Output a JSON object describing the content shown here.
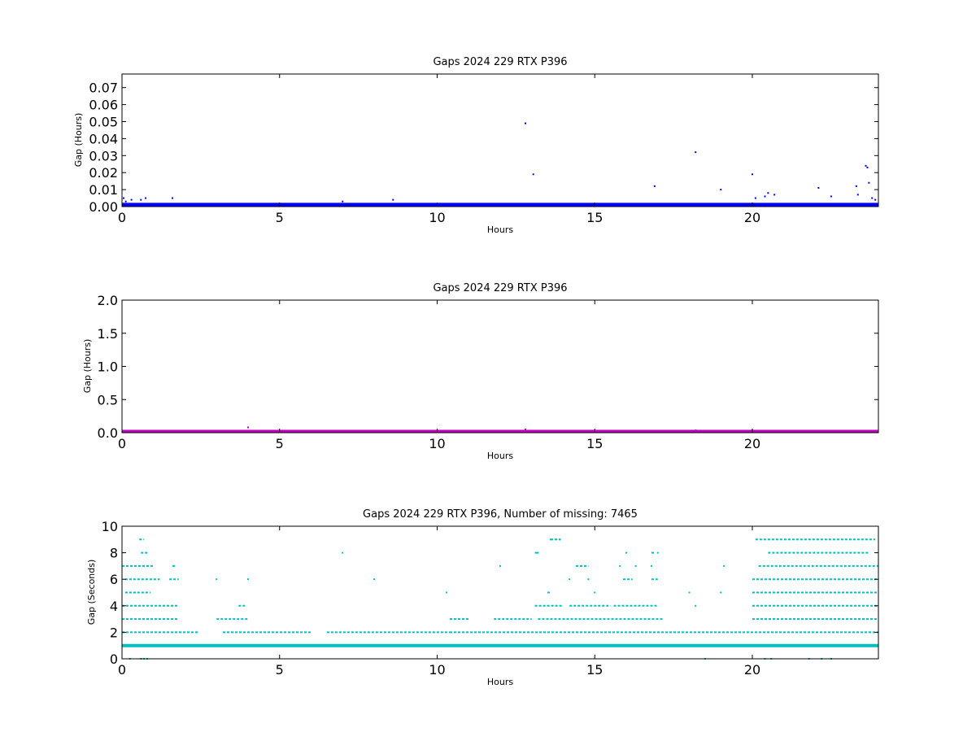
{
  "chart_data": [
    {
      "type": "scatter",
      "title": "Gaps 2024 229 RTX  P396",
      "xlabel": "Hours",
      "ylabel": "Gap (Hours)",
      "xlim": [
        0,
        24
      ],
      "ylim": [
        0,
        0.078
      ],
      "xticks": [
        "0",
        "5",
        "10",
        "15",
        "20"
      ],
      "yticks": [
        "0.00",
        "0.01",
        "0.02",
        "0.03",
        "0.04",
        "0.05",
        "0.06",
        "0.07"
      ],
      "grid": false,
      "color": "#0000ff",
      "series": [
        {
          "band": {
            "x_start": 0,
            "x_end": 24,
            "y_min": 0.0,
            "y_max": 0.0015
          },
          "points": [
            [
              0.05,
              0.005
            ],
            [
              0.12,
              0.003
            ],
            [
              0.3,
              0.004
            ],
            [
              0.6,
              0.004
            ],
            [
              0.75,
              0.005
            ],
            [
              1.6,
              0.005
            ],
            [
              7.0,
              0.003
            ],
            [
              8.6,
              0.004
            ],
            [
              12.8,
              0.049
            ],
            [
              13.05,
              0.019
            ],
            [
              16.9,
              0.012
            ],
            [
              18.2,
              0.032
            ],
            [
              19.0,
              0.01
            ],
            [
              20.0,
              0.019
            ],
            [
              20.1,
              0.005
            ],
            [
              20.4,
              0.006
            ],
            [
              20.5,
              0.008
            ],
            [
              20.7,
              0.007
            ],
            [
              22.1,
              0.011
            ],
            [
              22.5,
              0.006
            ],
            [
              23.3,
              0.012
            ],
            [
              23.35,
              0.007
            ],
            [
              23.6,
              0.024
            ],
            [
              23.65,
              0.023
            ],
            [
              23.7,
              0.014
            ],
            [
              23.8,
              0.005
            ],
            [
              23.9,
              0.004
            ]
          ]
        }
      ]
    },
    {
      "type": "scatter",
      "title": "Gaps 2024 229 RTX  P396",
      "xlabel": "Hours",
      "ylabel": "Gap (Hours)",
      "xlim": [
        0,
        24
      ],
      "ylim": [
        0,
        2.0
      ],
      "xticks": [
        "0",
        "5",
        "10",
        "15",
        "20"
      ],
      "yticks": [
        "0.0",
        "0.5",
        "1.0",
        "1.5",
        "2.0"
      ],
      "grid": false,
      "color": "#bf00bf",
      "series": [
        {
          "band": {
            "x_start": 0,
            "x_end": 24,
            "y_min": 0.0,
            "y_max": 0.025
          },
          "points": [
            [
              4.0,
              0.08
            ],
            [
              12.8,
              0.05
            ],
            [
              18.2,
              0.035
            ],
            [
              23.6,
              0.03
            ]
          ]
        }
      ]
    },
    {
      "type": "scatter",
      "title": "Gaps 2024 229 RTX  P396, Number of missing: 7465",
      "xlabel": "Hours",
      "ylabel": "Gap (Seconds)",
      "xlim": [
        0,
        24
      ],
      "ylim": [
        0,
        10
      ],
      "xticks": [
        "0",
        "5",
        "10",
        "15",
        "20"
      ],
      "yticks": [
        "0",
        "2",
        "4",
        "6",
        "8",
        "10"
      ],
      "grid": false,
      "color": "#00bfbf",
      "series": [
        {
          "levels": [
            {
              "y": 1,
              "ranges": [
                [
                  0,
                  24
                ]
              ]
            },
            {
              "y": 2,
              "ranges": [
                [
                  0,
                  2.4
                ],
                [
                  3.2,
                  6.0
                ],
                [
                  6.5,
                  10.4
                ],
                [
                  10.4,
                  24
                ]
              ]
            },
            {
              "y": 3,
              "ranges": [
                [
                  0,
                  1.8
                ],
                [
                  3.0,
                  4.0
                ],
                [
                  10.4,
                  11.0
                ],
                [
                  11.8,
                  13.0
                ],
                [
                  13.2,
                  17.2
                ],
                [
                  20.0,
                  24
                ]
              ]
            },
            {
              "y": 4,
              "ranges": [
                [
                  0,
                  1.8
                ],
                [
                  3.7,
                  3.9
                ],
                [
                  13.1,
                  14.0
                ],
                [
                  14.2,
                  15.5
                ],
                [
                  15.6,
                  17.0
                ],
                [
                  20.0,
                  24
                ]
              ]
            },
            {
              "y": 5,
              "ranges": [
                [
                  0.1,
                  0.9
                ],
                [
                  13.5,
                  13.6
                ],
                [
                  20.0,
                  24
                ]
              ]
            },
            {
              "y": 6,
              "ranges": [
                [
                  0.1,
                  1.2
                ],
                [
                  1.5,
                  1.8
                ],
                [
                  15.9,
                  16.2
                ],
                [
                  16.8,
                  17.0
                ],
                [
                  20.0,
                  24
                ]
              ]
            },
            {
              "y": 7,
              "ranges": [
                [
                  0,
                  1.0
                ],
                [
                  1.6,
                  1.7
                ],
                [
                  14.4,
                  14.8
                ],
                [
                  20.2,
                  24
                ]
              ]
            },
            {
              "y": 8,
              "ranges": [
                [
                  0.6,
                  0.8
                ],
                [
                  13.1,
                  13.2
                ],
                [
                  16.8,
                  16.9
                ],
                [
                  20.5,
                  23.7
                ]
              ]
            },
            {
              "y": 9,
              "ranges": [
                [
                  0.55,
                  0.7
                ],
                [
                  13.6,
                  13.9
                ],
                [
                  20.1,
                  23.9
                ]
              ]
            }
          ],
          "points": [
            [
              3.0,
              6
            ],
            [
              4.0,
              6
            ],
            [
              7.0,
              8
            ],
            [
              8.0,
              6
            ],
            [
              10.3,
              5
            ],
            [
              12.0,
              7
            ],
            [
              13.2,
              8
            ],
            [
              13.6,
              9
            ],
            [
              13.9,
              9
            ],
            [
              14.2,
              6
            ],
            [
              14.8,
              6
            ],
            [
              15.0,
              5
            ],
            [
              15.8,
              7
            ],
            [
              16.0,
              8
            ],
            [
              16.3,
              7
            ],
            [
              16.8,
              7
            ],
            [
              17.0,
              8
            ],
            [
              18.0,
              5
            ],
            [
              18.2,
              4
            ],
            [
              18.5,
              0
            ],
            [
              19.0,
              5
            ],
            [
              19.1,
              7
            ],
            [
              0.6,
              0
            ],
            [
              0.7,
              0
            ],
            [
              0.8,
              0
            ],
            [
              0.25,
              0
            ],
            [
              20.4,
              0
            ],
            [
              20.6,
              0
            ],
            [
              21.8,
              0
            ],
            [
              22.2,
              0
            ],
            [
              22.5,
              0
            ]
          ]
        }
      ]
    }
  ]
}
